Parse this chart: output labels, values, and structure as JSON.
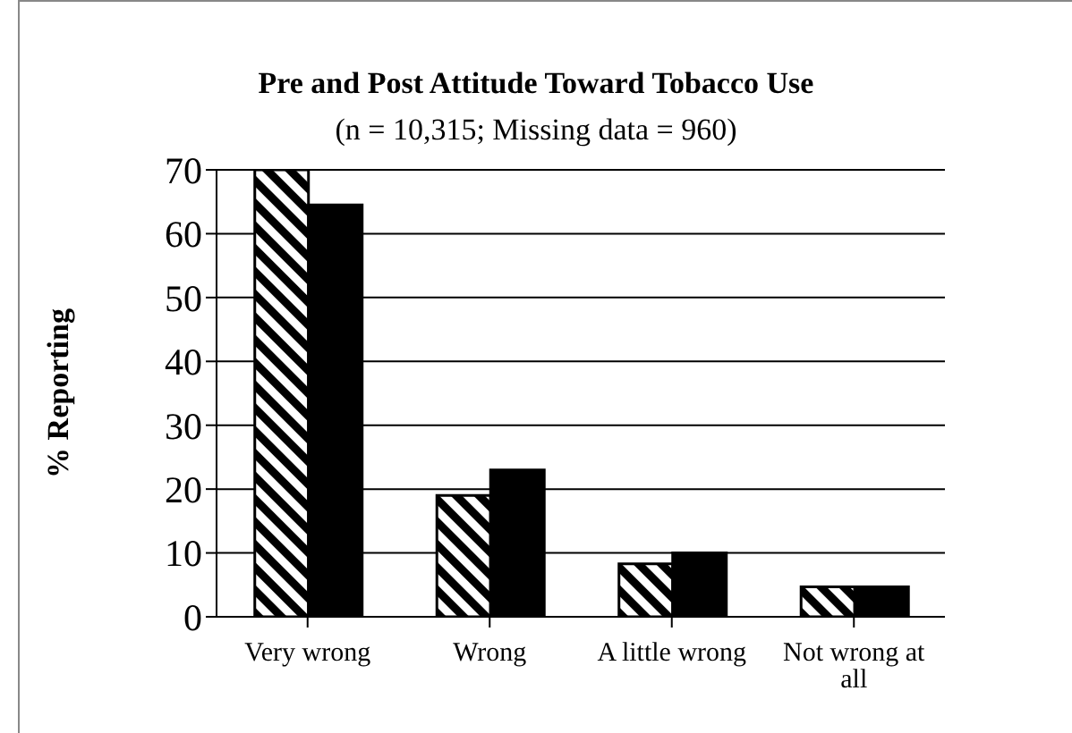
{
  "chart_data": {
    "type": "bar",
    "title": "Pre and Post Attitude Toward Tobacco Use",
    "subtitle": "(n = 10,315; Missing data = 960)",
    "ylabel": "% Reporting",
    "categories": [
      "Very wrong",
      "Wrong",
      "A little wrong",
      "Not wrong at all"
    ],
    "series": [
      {
        "color": "#000000",
        "values": [
          70,
          19,
          8.3,
          4.7
        ]
      },
      {
        "color": "#000000",
        "values": [
          64.5,
          23,
          10,
          4.7
        ]
      }
    ],
    "ylim": [
      0,
      70
    ],
    "yticks": [
      0,
      10,
      20,
      30,
      40,
      50,
      60,
      70
    ],
    "grid": "y",
    "legend": false
  }
}
